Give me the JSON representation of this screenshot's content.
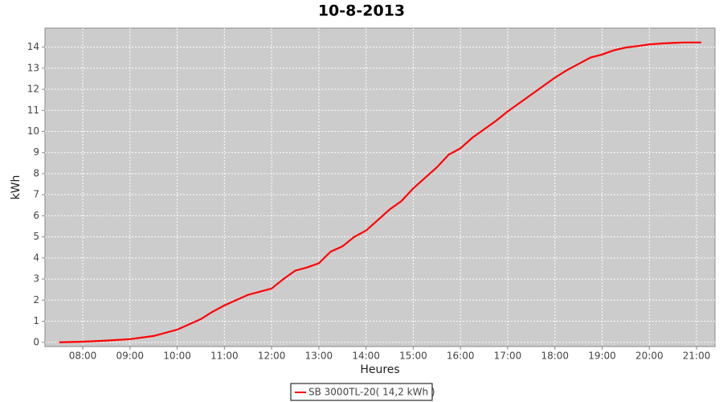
{
  "chart_data": {
    "type": "line",
    "title": "10-8-2013",
    "x_label": "Heures",
    "y_label": "kWh",
    "x": [
      7.5,
      8,
      8.5,
      9,
      9.5,
      10,
      10.25,
      10.5,
      10.75,
      11,
      11.25,
      11.5,
      11.75,
      12,
      12.25,
      12.5,
      12.75,
      13,
      13.25,
      13.5,
      13.75,
      14,
      14.25,
      14.5,
      14.75,
      15,
      15.25,
      15.5,
      15.75,
      16,
      16.25,
      16.5,
      16.75,
      17,
      17.25,
      17.5,
      17.75,
      18,
      18.25,
      18.5,
      18.75,
      19,
      19.25,
      19.5,
      19.75,
      20,
      20.25,
      20.5,
      20.75,
      21.1
    ],
    "series": [
      {
        "name": "SB 3000TL-20( 14,2 kWh )",
        "color": "#ff0000",
        "values": [
          0,
          0.03,
          0.08,
          0.15,
          0.3,
          0.6,
          0.85,
          1.1,
          1.45,
          1.75,
          2.0,
          2.25,
          2.4,
          2.55,
          3.0,
          3.4,
          3.55,
          3.75,
          4.3,
          4.55,
          5.0,
          5.3,
          5.8,
          6.3,
          6.7,
          7.3,
          7.8,
          8.3,
          8.9,
          9.2,
          9.7,
          10.1,
          10.5,
          10.95,
          11.35,
          11.75,
          12.15,
          12.55,
          12.9,
          13.2,
          13.5,
          13.65,
          13.85,
          13.98,
          14.05,
          14.13,
          14.17,
          14.2,
          14.22,
          14.22
        ]
      }
    ],
    "xlim": [
      7.2,
      21.39
    ],
    "xticks": [
      {
        "value": 8,
        "label": "08:00"
      },
      {
        "value": 9,
        "label": "09:00"
      },
      {
        "value": 10,
        "label": "10:00"
      },
      {
        "value": 11,
        "label": "11:00"
      },
      {
        "value": 12,
        "label": "12:00"
      },
      {
        "value": 13,
        "label": "13:00"
      },
      {
        "value": 14,
        "label": "14:00"
      },
      {
        "value": 15,
        "label": "15:00"
      },
      {
        "value": 16,
        "label": "16:00"
      },
      {
        "value": 17,
        "label": "17:00"
      },
      {
        "value": 18,
        "label": "18:00"
      },
      {
        "value": 19,
        "label": "19:00"
      },
      {
        "value": 20,
        "label": "20:00"
      },
      {
        "value": 21,
        "label": "21:00"
      }
    ],
    "ylim": [
      -0.2,
      14.9
    ],
    "yticks": [
      0,
      1,
      2,
      3,
      4,
      5,
      6,
      7,
      8,
      9,
      10,
      11,
      12,
      13,
      14
    ],
    "grid": true,
    "legend": "bottom"
  }
}
